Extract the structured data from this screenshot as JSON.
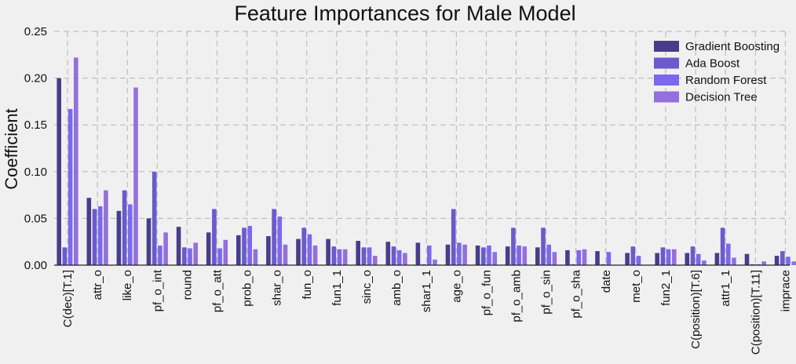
{
  "chart_data": {
    "type": "bar",
    "title": "Feature Importances for Male Model",
    "xlabel": "",
    "ylabel": "Coefficient",
    "ylim": [
      0,
      0.25
    ],
    "yticks": [
      "0.00",
      "0.05",
      "0.10",
      "0.15",
      "0.20",
      "0.25"
    ],
    "grid": true,
    "legend_position": "top-right",
    "categories": [
      "C(dec)[T.1]",
      "attr_o",
      "like_o",
      "pf_o_int",
      "round",
      "pf_o_att",
      "prob_o",
      "shar_o",
      "fun_o",
      "fun1_1",
      "sinc_o",
      "amb_o",
      "shar1_1",
      "age_o",
      "pf_o_fun",
      "pf_o_amb",
      "pf_o_sin",
      "pf_o_sha",
      "date",
      "met_o",
      "fun2_1",
      "C(position)[T.6]",
      "attr1_1",
      "C(position)[T.11]",
      "imprace"
    ],
    "series": [
      {
        "name": "Gradient Boosting",
        "color": "#483d8b",
        "values": [
          0.2,
          0.072,
          0.058,
          0.05,
          0.041,
          0.035,
          0.032,
          0.031,
          0.028,
          0.028,
          0.026,
          0.025,
          0.024,
          0.022,
          0.021,
          0.02,
          0.019,
          0.016,
          0.015,
          0.013,
          0.013,
          0.013,
          0.013,
          0.012,
          0.01
        ]
      },
      {
        "name": "Ada Boost",
        "color": "#6a5acd",
        "values": [
          0.019,
          0.06,
          0.08,
          0.1,
          0.019,
          0.06,
          0.04,
          0.06,
          0.04,
          0.02,
          0.019,
          0.02,
          0.001,
          0.06,
          0.019,
          0.04,
          0.04,
          0.001,
          0.001,
          0.02,
          0.019,
          0.02,
          0.04,
          0.001,
          0.015
        ]
      },
      {
        "name": "Random Forest",
        "color": "#7b68ee",
        "values": [
          0.167,
          0.063,
          0.065,
          0.021,
          0.018,
          0.018,
          0.042,
          0.052,
          0.033,
          0.017,
          0.019,
          0.016,
          0.021,
          0.024,
          0.021,
          0.021,
          0.022,
          0.016,
          0.014,
          0.01,
          0.017,
          0.012,
          0.023,
          0.001,
          0.009
        ]
      },
      {
        "name": "Decision Tree",
        "color": "#9370db",
        "values": [
          0.222,
          0.08,
          0.19,
          0.035,
          0.024,
          0.027,
          0.017,
          0.022,
          0.021,
          0.017,
          0.01,
          0.013,
          0.006,
          0.022,
          0.014,
          0.02,
          0.014,
          0.017,
          0.0,
          0.0,
          0.017,
          0.005,
          0.008,
          0.004,
          0.004
        ]
      }
    ]
  }
}
